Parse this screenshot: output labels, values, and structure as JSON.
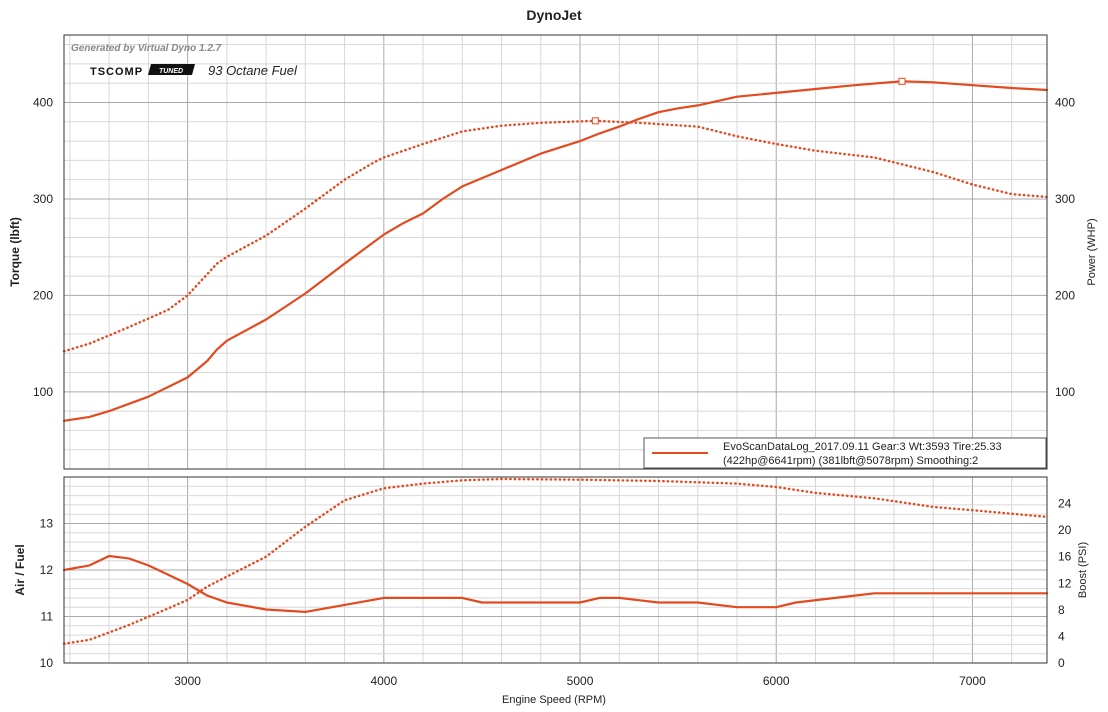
{
  "colors": {
    "series": "#e34a1f",
    "grid_major": "#aaaaaa",
    "grid_minor": "#d8d8d8",
    "frame": "#333333"
  },
  "chart_data": {
    "title": "DynoJet",
    "watermark": "Generated by Virtual Dyno 1.2.7",
    "logo": {
      "brand": "TSCOMP",
      "badge": "TUNED"
    },
    "fuel_label": "93 Octane Fuel",
    "legend": {
      "line1": "EvoScanDataLog_2017.09.11 Gear:3 Wt:3593 Tire:25.33",
      "line2": "(422hp@6641rpm) (381lbft@5078rpm) Smoothing:2",
      "placement": "bottom-right"
    },
    "xlabel": "Engine Speed (RPM)",
    "xlim": [
      2370,
      7380
    ],
    "xticks": [
      3000,
      4000,
      5000,
      6000,
      7000
    ],
    "panels": [
      {
        "type": "line",
        "ylabel_left": "Torque (lbft)",
        "ylabel_right": "Power (WHP)",
        "ylim": [
          20,
          470
        ],
        "yticks": [
          100,
          200,
          300,
          400
        ],
        "series": [
          {
            "style": "solid",
            "x": [
              2370,
              2500,
              2600,
              2800,
              3000,
              3100,
              3150,
              3200,
              3400,
              3600,
              3800,
              4000,
              4100,
              4200,
              4300,
              4400,
              4600,
              4800,
              5000,
              5100,
              5200,
              5300,
              5400,
              5500,
              5600,
              5800,
              6000,
              6200,
              6400,
              6641,
              6800,
              7000,
              7200,
              7380
            ],
            "y": [
              70,
              74,
              80,
              95,
              115,
              132,
              144,
              153,
              175,
              202,
              233,
              263,
              275,
              285,
              300,
              313,
              330,
              347,
              360,
              368,
              375,
              383,
              390,
              394,
              397,
              406,
              410,
              414,
              418,
              422,
              421,
              418,
              415,
              413
            ]
          },
          {
            "style": "dotted",
            "x": [
              2370,
              2500,
              2700,
              2900,
              3000,
              3100,
              3150,
              3200,
              3400,
              3600,
              3800,
              3950,
              4000,
              4200,
              4400,
              4600,
              4800,
              5078,
              5300,
              5600,
              5800,
              6000,
              6200,
              6500,
              6800,
              7000,
              7200,
              7380
            ],
            "y": [
              142,
              150,
              167,
              185,
              200,
              222,
              233,
              240,
              262,
              290,
              320,
              338,
              343,
              357,
              370,
              376,
              379,
              381,
              379,
              375,
              365,
              357,
              350,
              343,
              328,
              315,
              305,
              302
            ]
          }
        ],
        "peak_markers": [
          {
            "x": 5078,
            "y": 381
          },
          {
            "x": 6641,
            "y": 422
          }
        ]
      },
      {
        "type": "line",
        "ylabel_left": "Air / Fuel",
        "ylabel_right": "Boost (PSI)",
        "ylim": [
          10,
          14
        ],
        "yticks": [
          10,
          11,
          12,
          13
        ],
        "right_lim": [
          0,
          28
        ],
        "right_ticks": [
          0,
          4,
          8,
          12,
          16,
          20,
          24
        ],
        "series": [
          {
            "name": "Air / Fuel",
            "style": "solid",
            "x": [
              2370,
              2500,
              2600,
              2700,
              2800,
              2900,
              3000,
              3100,
              3200,
              3400,
              3600,
              3800,
              4000,
              4200,
              4400,
              4500,
              4600,
              4800,
              5000,
              5100,
              5200,
              5300,
              5400,
              5600,
              5800,
              6000,
              6100,
              6400,
              6500,
              7000,
              7380
            ],
            "y": [
              12.0,
              12.1,
              12.3,
              12.25,
              12.1,
              11.9,
              11.7,
              11.45,
              11.3,
              11.15,
              11.1,
              11.25,
              11.4,
              11.4,
              11.4,
              11.3,
              11.3,
              11.3,
              11.3,
              11.4,
              11.4,
              11.35,
              11.3,
              11.3,
              11.2,
              11.2,
              11.3,
              11.45,
              11.5,
              11.5,
              11.5
            ]
          },
          {
            "name": "Boost (PSI)",
            "style": "dotted",
            "x": [
              2370,
              2500,
              2700,
              2900,
              3000,
              3100,
              3200,
              3400,
              3600,
              3800,
              4000,
              4200,
              4400,
              4600,
              5000,
              5400,
              5800,
              6000,
              6200,
              6500,
              6800,
              7000,
              7380
            ],
            "y": [
              2.9,
              3.5,
              5.7,
              8.2,
              9.5,
              11.5,
              13.0,
              16.0,
              20.5,
              24.5,
              26.3,
              27.0,
              27.5,
              27.7,
              27.6,
              27.4,
              27.0,
              26.5,
              25.6,
              24.8,
              23.5,
              23.0,
              22.0
            ]
          }
        ]
      }
    ]
  }
}
